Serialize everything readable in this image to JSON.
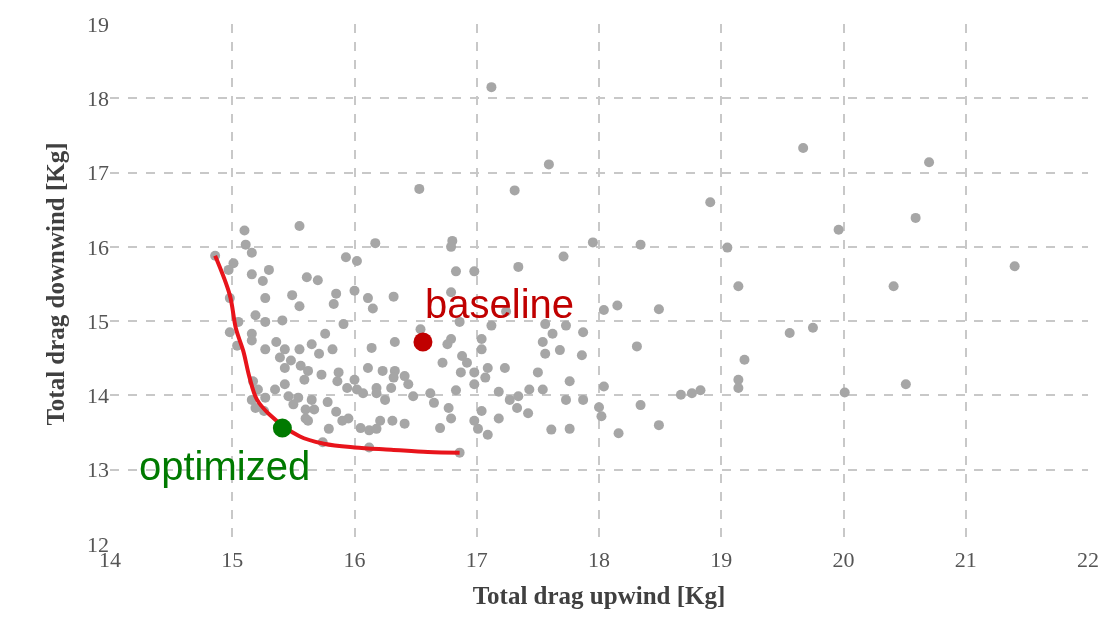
{
  "chart_data": {
    "type": "scatter",
    "xlabel": "Total drag upwind [Kg]",
    "ylabel": "Total drag downwind [Kg]",
    "xlim": [
      14,
      22
    ],
    "xticks": [
      14,
      15,
      16,
      17,
      18,
      19,
      20,
      21,
      22
    ],
    "ylim": [
      12,
      19
    ],
    "yticks": [
      12,
      13,
      14,
      15,
      16,
      17,
      18,
      19
    ],
    "grid": true,
    "marker": "circle",
    "annotations": [
      {
        "text": "baseline",
        "x": 16.56,
        "y": 14.72
      },
      {
        "text": "optimized",
        "x": 15.41,
        "y": 13.56
      }
    ],
    "series": [
      {
        "color": "#a6a6a6",
        "x": [
          19.67,
          20.7,
          20.59,
          19.96,
          21.4,
          20.41,
          19.56,
          19.75,
          20.01,
          20.51,
          18.91,
          17.95,
          18.34,
          19.05,
          19.14,
          18.15,
          18.04,
          18.49,
          17.87,
          18.31,
          17.86,
          19.19,
          18.04,
          17.87,
          18.67,
          18.76,
          18.83,
          19.14,
          19.14,
          18.0,
          18.02,
          18.34,
          18.16,
          18.49,
          17.12,
          16.53,
          17.31,
          17.59,
          16.8,
          16.79,
          17.71,
          17.34,
          16.83,
          16.98,
          16.32,
          16.79,
          17.24,
          16.86,
          17.12,
          17.56,
          17.73,
          17.62,
          17.54,
          17.68,
          17.56,
          16.54,
          16.33,
          16.79,
          16.76,
          17.04,
          17.04,
          16.72,
          16.88,
          16.92,
          16.87,
          16.98,
          17.09,
          17.23,
          17.07,
          16.98,
          16.83,
          17.5,
          17.76,
          17.43,
          17.54,
          17.73,
          17.18,
          17.27,
          17.34,
          17.33,
          17.42,
          17.18,
          17.04,
          16.98,
          17.01,
          17.09,
          16.77,
          16.79,
          16.7,
          16.62,
          16.65,
          16.48,
          16.41,
          16.33,
          16.44,
          16.3,
          16.41,
          16.31,
          17.61,
          17.76,
          16.86,
          15.55,
          15.1,
          16.17,
          14.86,
          15.11,
          15.16,
          15.01,
          14.97,
          15.3,
          15.16,
          15.25,
          15.93,
          16.02,
          15.61,
          15.7,
          15.85,
          16.0,
          15.83,
          16.11,
          16.15,
          15.49,
          15.55,
          15.27,
          14.98,
          15.19,
          15.27,
          15.41,
          15.91,
          15.05,
          14.98,
          15.16,
          15.16,
          15.04,
          15.76,
          15.27,
          15.36,
          15.43,
          15.55,
          15.65,
          15.82,
          15.71,
          16.14,
          15.39,
          15.48,
          15.56,
          15.43,
          15.62,
          15.73,
          15.87,
          16.0,
          16.11,
          16.23,
          16.32,
          16.18,
          16.02,
          15.94,
          15.86,
          15.59,
          15.43,
          15.35,
          15.27,
          15.17,
          15.21,
          15.16,
          15.19,
          15.26,
          15.46,
          15.54,
          15.65,
          15.5,
          15.6,
          15.67,
          15.6,
          15.62,
          15.85,
          15.78,
          16.07,
          16.18,
          16.25,
          15.9,
          15.95,
          16.05,
          16.12,
          16.21,
          16.18,
          15.79,
          15.74,
          16.12
        ],
        "values": [
          17.33,
          17.14,
          16.39,
          16.23,
          15.74,
          15.47,
          14.84,
          14.91,
          14.04,
          14.15,
          16.6,
          16.06,
          16.03,
          15.99,
          15.47,
          15.21,
          15.15,
          15.16,
          14.85,
          14.66,
          14.54,
          14.48,
          14.12,
          13.94,
          14.01,
          14.03,
          14.07,
          14.21,
          14.1,
          13.84,
          13.72,
          13.87,
          13.49,
          13.6,
          18.15,
          16.78,
          16.76,
          17.11,
          16.08,
          16.0,
          15.87,
          15.73,
          15.67,
          15.67,
          15.33,
          15.39,
          15.13,
          14.99,
          14.94,
          14.96,
          14.94,
          14.83,
          14.72,
          14.61,
          14.56,
          14.89,
          14.72,
          14.76,
          14.69,
          14.76,
          14.62,
          14.44,
          14.53,
          14.44,
          14.31,
          14.31,
          14.37,
          14.37,
          14.24,
          14.15,
          14.07,
          14.31,
          14.19,
          14.08,
          14.08,
          13.94,
          14.05,
          13.94,
          13.99,
          13.83,
          13.76,
          13.69,
          13.79,
          13.66,
          13.55,
          13.47,
          13.83,
          13.69,
          13.56,
          14.03,
          13.9,
          13.99,
          14.26,
          14.33,
          14.15,
          14.1,
          13.62,
          13.66,
          13.54,
          13.55,
          13.23,
          16.28,
          16.22,
          16.05,
          15.88,
          16.03,
          15.92,
          15.78,
          15.69,
          15.69,
          15.63,
          15.54,
          15.86,
          15.81,
          15.59,
          15.55,
          15.37,
          15.41,
          15.23,
          15.31,
          15.17,
          15.35,
          15.2,
          15.31,
          15.31,
          15.08,
          14.99,
          15.01,
          14.96,
          14.99,
          14.85,
          14.83,
          14.74,
          14.67,
          14.83,
          14.62,
          14.72,
          14.62,
          14.62,
          14.69,
          14.62,
          14.56,
          14.64,
          14.51,
          14.47,
          14.4,
          14.37,
          14.33,
          14.28,
          14.31,
          14.21,
          14.37,
          14.33,
          14.24,
          14.1,
          14.08,
          14.1,
          14.19,
          14.21,
          14.15,
          14.08,
          13.97,
          14.19,
          14.08,
          13.94,
          13.83,
          13.79,
          13.99,
          13.97,
          13.94,
          13.88,
          13.81,
          13.81,
          13.69,
          13.66,
          13.78,
          13.91,
          14.03,
          14.03,
          13.94,
          13.66,
          13.69,
          13.56,
          13.53,
          13.66,
          13.55,
          13.55,
          13.37,
          13.3
        ]
      },
      {
        "type": "line",
        "marker": "none",
        "color": "#e8141b",
        "x": [
          14.86,
          14.98,
          15.03,
          15.09,
          15.14,
          15.2,
          15.3,
          15.55,
          15.75,
          16.0,
          16.3,
          16.6,
          16.86
        ],
        "values": [
          15.88,
          15.35,
          14.9,
          14.6,
          14.25,
          13.95,
          13.75,
          13.45,
          13.35,
          13.3,
          13.27,
          13.24,
          13.23
        ]
      },
      {
        "color": "#c00000",
        "x": [
          16.56
        ],
        "values": [
          14.72
        ]
      },
      {
        "color": "#007a00",
        "x": [
          15.41
        ],
        "values": [
          13.56
        ]
      }
    ]
  }
}
